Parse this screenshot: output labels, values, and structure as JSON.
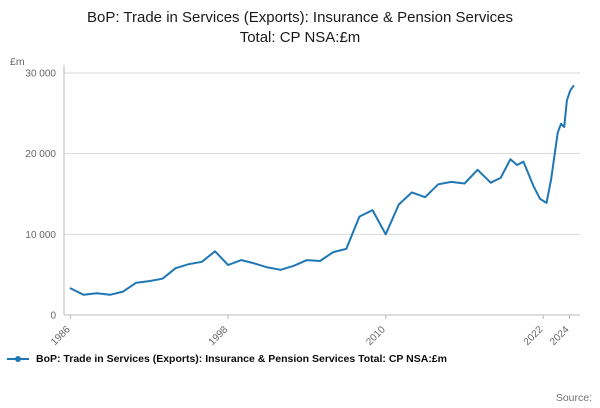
{
  "title": "BoP: Trade in Services (Exports): Insurance & Pension Services Total: CP NSA:£m",
  "legend": {
    "label": "BoP: Trade in Services (Exports): Insurance & Pension Services Total: CP NSA:£m"
  },
  "source": {
    "label": "Source:"
  },
  "colors": {
    "line": "#1f77b4",
    "grid": "#d9d9d9",
    "axis": "#bbbbbb",
    "tick_text": "#666666"
  },
  "chart_data": {
    "type": "line",
    "title": "BoP: Trade in Services (Exports): Insurance & Pension Services Total: CP NSA:£m",
    "xlabel": "",
    "ylabel": "£m",
    "xlim": [
      1985.5,
      2024.8
    ],
    "ylim": [
      0,
      30000
    ],
    "yticks": [
      0,
      10000,
      20000,
      30000
    ],
    "ytick_labels": [
      "0",
      "10 000",
      "20 000",
      "30 000"
    ],
    "xticks": [
      1986,
      1998,
      2010,
      2022,
      2024
    ],
    "xtick_labels": [
      "1986",
      "1998",
      "2010",
      "2022",
      "2024"
    ],
    "grid": true,
    "legend_position": "bottom-left",
    "series": [
      {
        "name": "BoP: Trade in Services (Exports): Insurance & Pension Services Total: CP NSA:£m",
        "x": [
          1986,
          1987,
          1988,
          1989,
          1990,
          1991,
          1992,
          1993,
          1994,
          1995,
          1996,
          1997,
          1998,
          1999,
          2000,
          2001,
          2002,
          2003,
          2004,
          2005,
          2006,
          2007,
          2008,
          2009,
          2010,
          2011,
          2012,
          2013,
          2014,
          2015,
          2016,
          2017,
          2018,
          2018.75,
          2019.5,
          2020,
          2020.5,
          2021.25,
          2021.75,
          2022.25,
          2022.6,
          2022.9,
          2023.1,
          2023.35,
          2023.6,
          2023.8,
          2024.05,
          2024.3
        ],
        "values": [
          3300,
          2500,
          2700,
          2500,
          2900,
          4000,
          4200,
          4500,
          5800,
          6300,
          6600,
          7900,
          6200,
          6800,
          6400,
          5900,
          5600,
          6100,
          6800,
          6700,
          7800,
          8200,
          12200,
          13000,
          10000,
          13700,
          15200,
          14600,
          16200,
          16500,
          16300,
          18000,
          16400,
          17000,
          19300,
          18600,
          19000,
          16000,
          14400,
          13900,
          16800,
          20300,
          22600,
          23700,
          23300,
          26600,
          27800,
          28400
        ]
      }
    ]
  }
}
